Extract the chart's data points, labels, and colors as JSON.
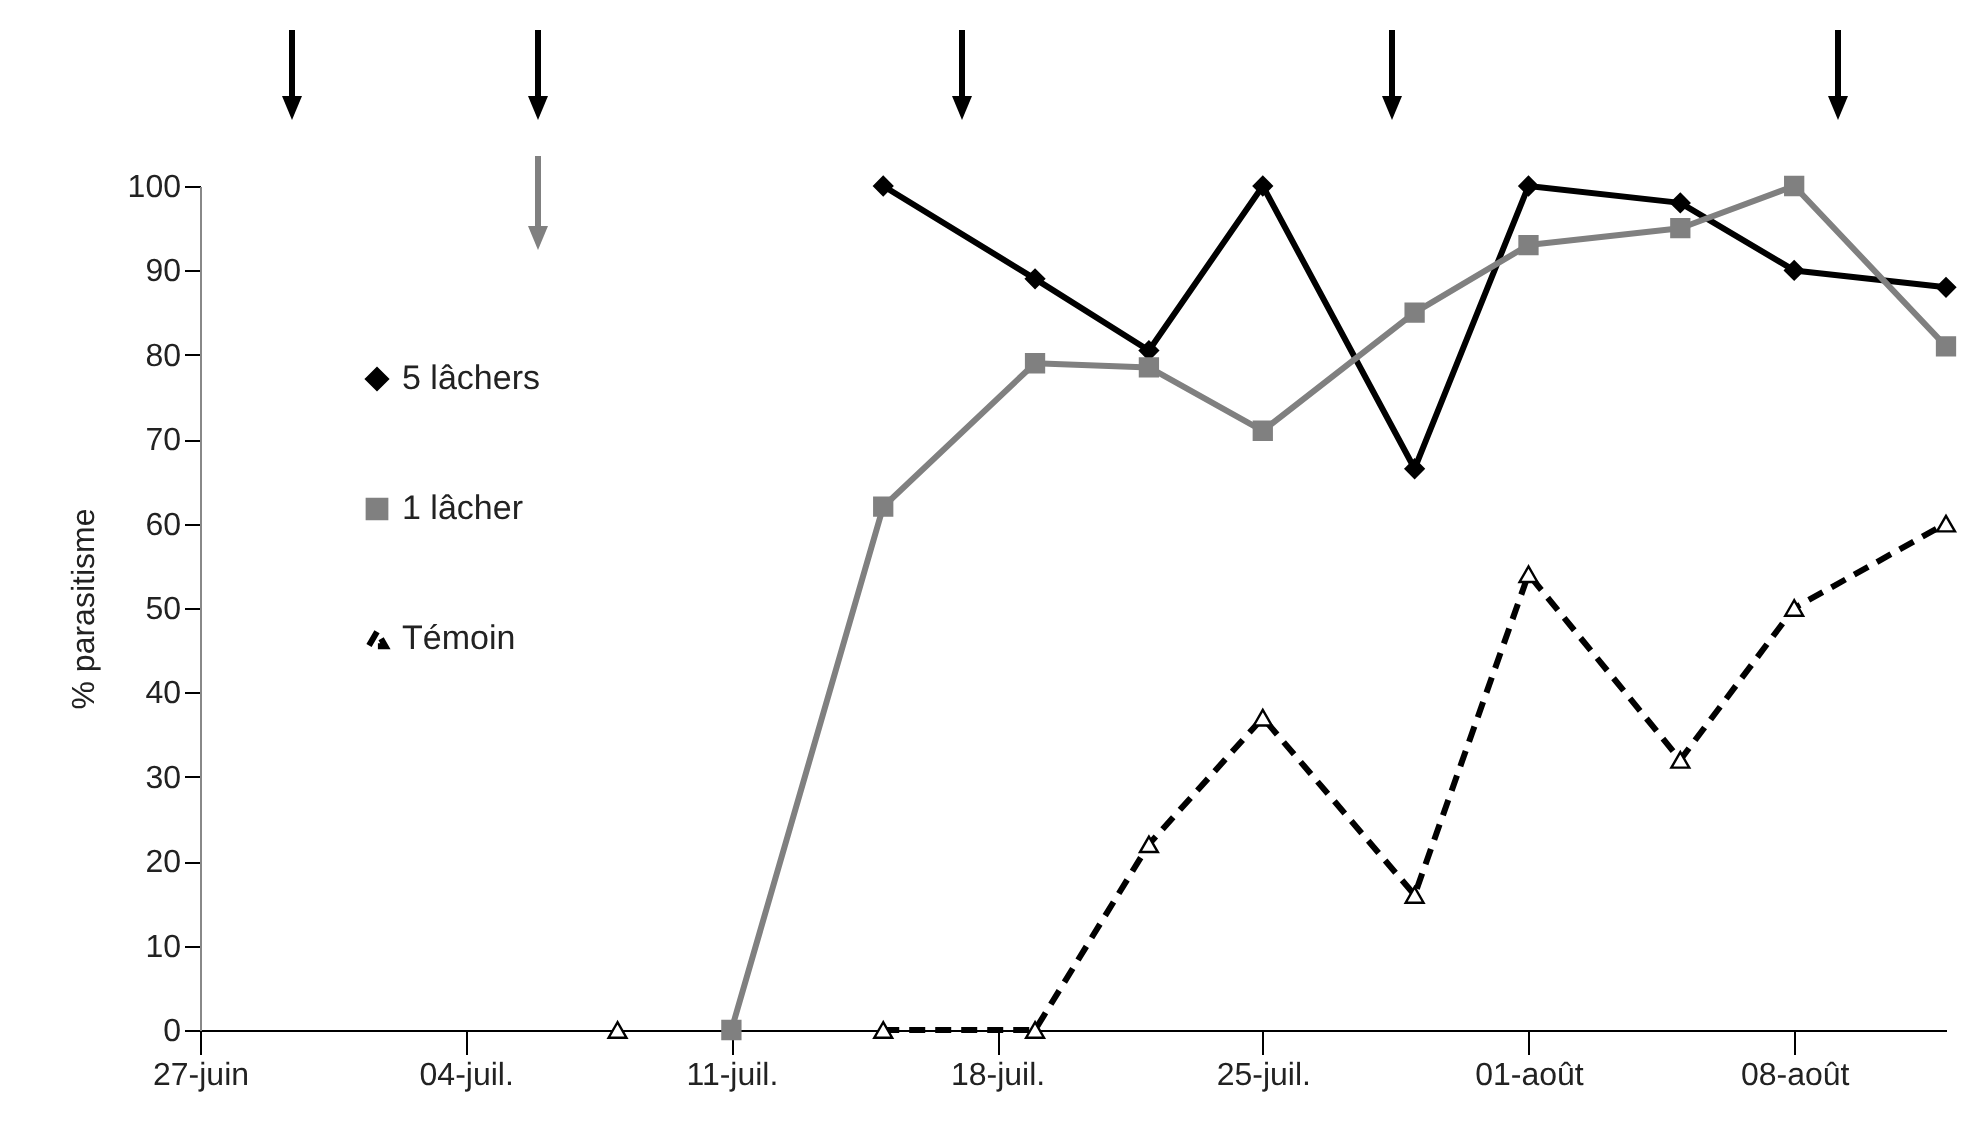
{
  "chart_data": {
    "type": "line",
    "ylabel": "% parasitisme",
    "x": [
      "--07-08",
      "--07-11",
      "--07-15",
      "--07-19",
      "--07-22",
      "--07-25",
      "--07-29",
      "--08-01",
      "--08-05",
      "--08-08",
      "--08-12"
    ],
    "series": [
      {
        "name": "5 lâchers",
        "color": "#000000",
        "marker": "diamond",
        "line_style": "solid",
        "values": [
          null,
          null,
          100,
          89,
          80.5,
          100,
          66.5,
          100,
          98,
          90,
          88
        ]
      },
      {
        "name": "1 lâcher",
        "color": "#808080",
        "marker": "square",
        "line_style": "solid",
        "values": [
          null,
          0,
          62,
          79,
          78.5,
          71,
          85,
          93,
          95,
          100,
          81
        ]
      },
      {
        "name": "Témoin",
        "color": "#000000",
        "marker": "triangle",
        "line_style": "dashed",
        "values": [
          0,
          null,
          0,
          0,
          22,
          37,
          16,
          54,
          32,
          50,
          60
        ]
      }
    ],
    "xlim": [
      "--06-27",
      "--08-12"
    ],
    "xticks": [
      {
        "value": "--06-27",
        "label": "27-juin"
      },
      {
        "value": "--07-04",
        "label": "04-juil."
      },
      {
        "value": "--07-11",
        "label": "11-juil."
      },
      {
        "value": "--07-18",
        "label": "18-juil."
      },
      {
        "value": "--07-25",
        "label": "25-juil."
      },
      {
        "value": "--08-01",
        "label": "01-août"
      },
      {
        "value": "--08-08",
        "label": "08-août"
      }
    ],
    "ylim": [
      0,
      100
    ],
    "yticks": [
      0,
      10,
      20,
      30,
      40,
      50,
      60,
      70,
      80,
      90,
      100
    ],
    "legend": "left",
    "grid": false
  }
}
